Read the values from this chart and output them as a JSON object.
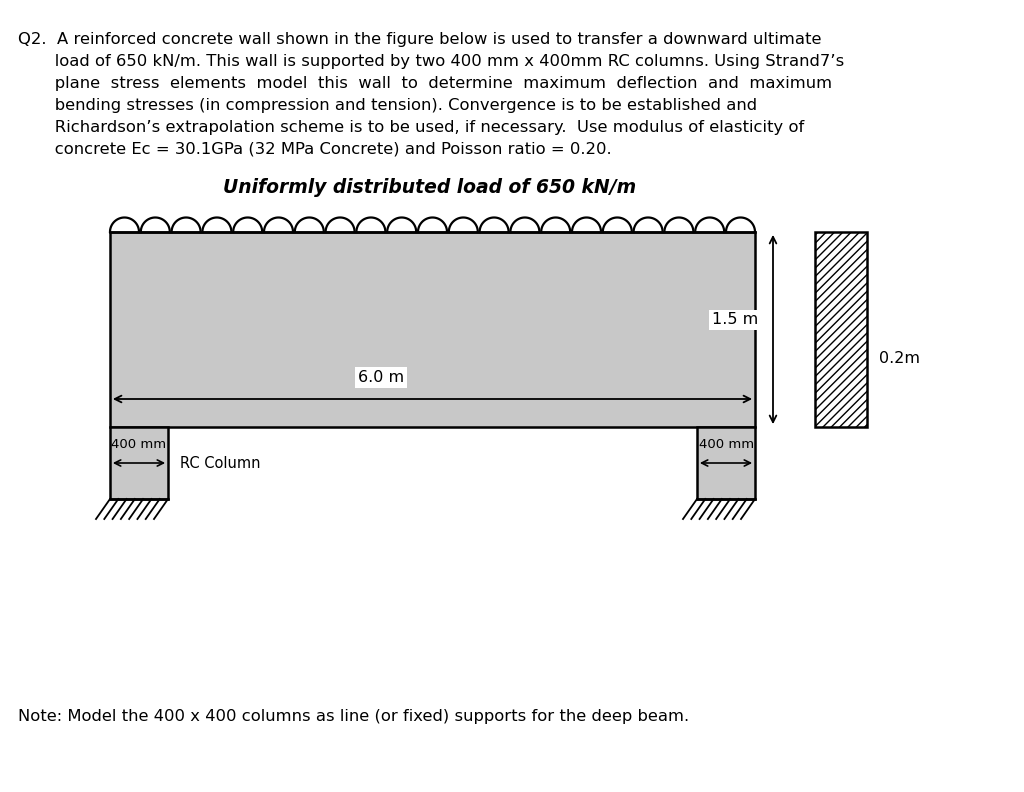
{
  "question_lines": [
    "Q2.  A reinforced concrete wall shown in the figure below is used to transfer a downward ultimate",
    "       load of 650 kN/m. This wall is supported by two 400 mm x 400mm RC columns. Using Strand7’s",
    "       plane  stress  elements  model  this  wall  to  determine  maximum  deflection  and  maximum",
    "       bending stresses (in compression and tension). Convergence is to be established and",
    "       Richardson’s extrapolation scheme is to be used, if necessary.  Use modulus of elasticity of",
    "       concrete Ec = 30.1GPa (32 MPa Concrete) and Poisson ratio = 0.20."
  ],
  "diagram_title": "Uniformly distributed load of 650 kN/m",
  "note_text": "Note: Model the 400 x 400 columns as line (or fixed) supports for the deep beam.",
  "wall_color": "#c8c8c8",
  "bg_color": "#ffffff"
}
